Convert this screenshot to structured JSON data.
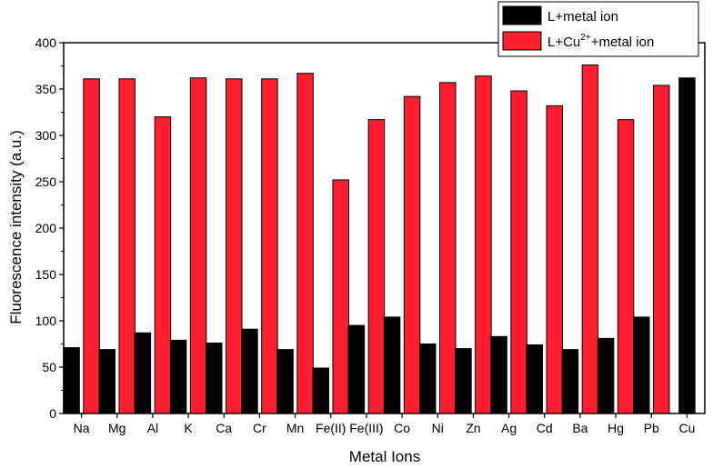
{
  "chart_data": {
    "type": "bar",
    "xlabel": "Metal Ions",
    "ylabel": "Fluorescence intensity (a.u.)",
    "ylim": [
      0,
      400
    ],
    "yticks": [
      0,
      50,
      100,
      150,
      200,
      250,
      300,
      350,
      400
    ],
    "categories": [
      "Na",
      "Mg",
      "Al",
      "K",
      "Ca",
      "Cr",
      "Mn",
      "Fe(II)",
      "Fe(III)",
      "Co",
      "Ni",
      "Zn",
      "Ag",
      "Cd",
      "Ba",
      "Hg",
      "Pb",
      "Cu"
    ],
    "legend_position": "top-right, outside plot",
    "series": [
      {
        "name": "L+metal ion",
        "color": "#000000",
        "values": [
          71,
          69,
          87,
          79,
          76,
          91,
          69,
          49,
          95,
          104,
          75,
          70,
          83,
          74,
          69,
          81,
          104,
          362
        ]
      },
      {
        "name_parts": [
          "L+Cu",
          "2+",
          "+metal ion"
        ],
        "color": "#ff1f2e",
        "values": [
          361,
          361,
          320,
          362,
          361,
          361,
          367,
          252,
          317,
          342,
          357,
          364,
          348,
          332,
          376,
          317,
          354,
          null
        ]
      }
    ]
  }
}
